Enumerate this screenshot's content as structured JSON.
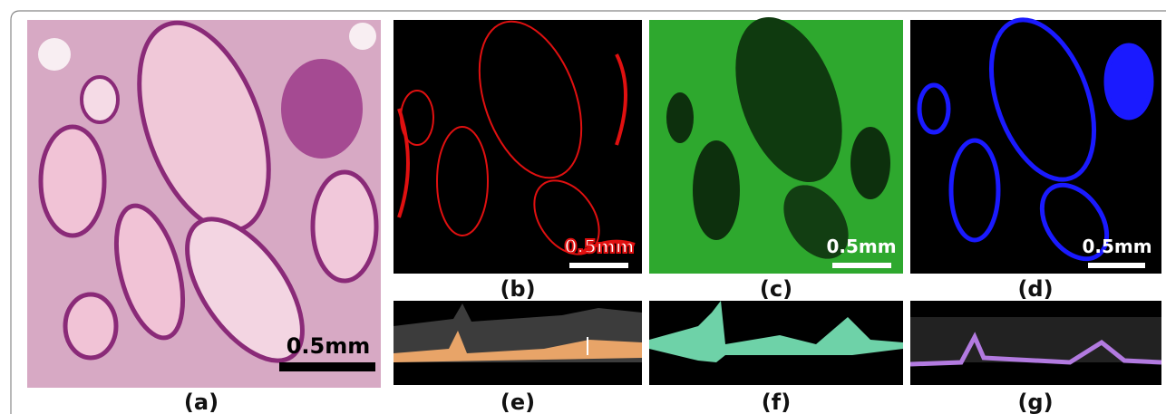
{
  "panels": [
    {
      "label": "(a)",
      "scale_bar": "0.5mm"
    },
    {
      "label": "(b)",
      "scale_bar": "0.5mm"
    },
    {
      "label": "(c)",
      "scale_bar": "0.5mm"
    },
    {
      "label": "(d)",
      "scale_bar": "0.5mm"
    },
    {
      "label": "(e)"
    },
    {
      "label": "(f)"
    },
    {
      "label": "(g)"
    }
  ]
}
